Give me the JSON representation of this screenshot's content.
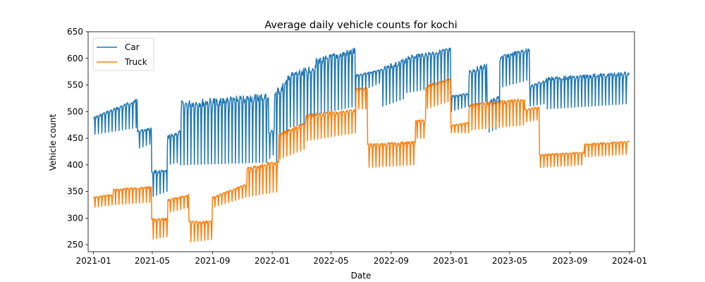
{
  "chart_data": {
    "type": "line",
    "title": "Average daily vehicle counts for kochi",
    "xlabel": "Date",
    "ylabel": "Vehicle count",
    "x_range": [
      "2020-12-21",
      "2024-01-11"
    ],
    "ylim": [
      237,
      650
    ],
    "x_ticks": [
      "2021-01",
      "2021-05",
      "2021-09",
      "2022-01",
      "2022-05",
      "2022-09",
      "2023-01",
      "2023-05",
      "2023-09",
      "2024-01"
    ],
    "y_ticks": [
      250,
      300,
      350,
      400,
      450,
      500,
      550,
      600,
      650
    ],
    "grid": false,
    "legend_position": "top-left",
    "weekly_pattern": "sawtooth weekly cycle; ranges below give the low and high of each segment",
    "series": [
      {
        "name": "Car",
        "color": "#1f77b4",
        "segments": [
          {
            "start": "2021-01-01",
            "end": "2021-03-31",
            "low": [
              457,
              470
            ],
            "high": [
              490,
              525
            ]
          },
          {
            "start": "2021-04-01",
            "end": "2021-04-29",
            "low": [
              430,
              440
            ],
            "high": [
              465,
              470
            ]
          },
          {
            "start": "2021-04-30",
            "end": "2021-05-31",
            "low": [
              340,
              350
            ],
            "high": [
              390,
              390
            ]
          },
          {
            "start": "2021-06-01",
            "end": "2021-06-27",
            "low": [
              400,
              405
            ],
            "high": [
              455,
              465
            ]
          },
          {
            "start": "2021-06-28",
            "end": "2021-12-24",
            "low": [
              400,
              405
            ],
            "high": [
              520,
              535
            ]
          },
          {
            "start": "2021-12-25",
            "end": "2022-01-05",
            "low": [
              410,
              420
            ],
            "high": [
              460,
              470
            ]
          },
          {
            "start": "2022-01-06",
            "end": "2022-01-31",
            "low": [
              400,
              440
            ],
            "high": [
              540,
              560
            ]
          },
          {
            "start": "2022-02-01",
            "end": "2022-03-31",
            "low": [
              470,
              480
            ],
            "high": [
              570,
              590
            ]
          },
          {
            "start": "2022-04-01",
            "end": "2022-06-20",
            "low": [
              495,
              510
            ],
            "high": [
              600,
              620
            ]
          },
          {
            "start": "2022-06-21",
            "end": "2022-08-14",
            "low": [
              535,
              555
            ],
            "high": [
              570,
              580
            ]
          },
          {
            "start": "2022-08-15",
            "end": "2022-09-30",
            "low": [
              510,
              525
            ],
            "high": [
              585,
              600
            ]
          },
          {
            "start": "2022-10-01",
            "end": "2022-12-31",
            "low": [
              535,
              550
            ],
            "high": [
              605,
              620
            ]
          },
          {
            "start": "2023-01-01",
            "end": "2023-02-06",
            "low": [
              500,
              510
            ],
            "high": [
              530,
              535
            ]
          },
          {
            "start": "2023-02-07",
            "end": "2023-03-15",
            "low": [
              500,
              520
            ],
            "high": [
              580,
              590
            ]
          },
          {
            "start": "2023-03-16",
            "end": "2023-04-10",
            "low": [
              460,
              470
            ],
            "high": [
              520,
              530
            ]
          },
          {
            "start": "2023-04-11",
            "end": "2023-06-10",
            "low": [
              545,
              560
            ],
            "high": [
              605,
              620
            ]
          },
          {
            "start": "2023-06-11",
            "end": "2023-07-14",
            "low": [
              510,
              515
            ],
            "high": [
              550,
              560
            ]
          },
          {
            "start": "2023-07-15",
            "end": "2023-12-31",
            "low": [
              505,
              515
            ],
            "high": [
              565,
              575
            ]
          }
        ]
      },
      {
        "name": "Truck",
        "color": "#ff7f0e",
        "segments": [
          {
            "start": "2021-01-01",
            "end": "2021-02-10",
            "low": [
              320,
              325
            ],
            "high": [
              340,
              345
            ]
          },
          {
            "start": "2021-02-11",
            "end": "2021-04-29",
            "low": [
              325,
              330
            ],
            "high": [
              355,
              360
            ]
          },
          {
            "start": "2021-04-30",
            "end": "2021-06-01",
            "low": [
              260,
              265
            ],
            "high": [
              300,
              300
            ]
          },
          {
            "start": "2021-06-02",
            "end": "2021-07-14",
            "low": [
              310,
              320
            ],
            "high": [
              335,
              345
            ]
          },
          {
            "start": "2021-07-15",
            "end": "2021-08-31",
            "low": [
              255,
              260
            ],
            "high": [
              295,
              295
            ]
          },
          {
            "start": "2021-09-01",
            "end": "2021-11-10",
            "low": [
              320,
              340
            ],
            "high": [
              340,
              365
            ]
          },
          {
            "start": "2021-11-11",
            "end": "2022-01-14",
            "low": [
              340,
              350
            ],
            "high": [
              395,
              410
            ]
          },
          {
            "start": "2022-01-15",
            "end": "2022-03-10",
            "low": [
              410,
              430
            ],
            "high": [
              460,
              480
            ]
          },
          {
            "start": "2022-03-11",
            "end": "2022-06-20",
            "low": [
              445,
              460
            ],
            "high": [
              495,
              505
            ]
          },
          {
            "start": "2022-06-21",
            "end": "2022-07-14",
            "low": [
              505,
              505
            ],
            "high": [
              545,
              545
            ]
          },
          {
            "start": "2022-07-15",
            "end": "2022-10-20",
            "low": [
              395,
              400
            ],
            "high": [
              440,
              445
            ]
          },
          {
            "start": "2022-10-21",
            "end": "2022-11-10",
            "low": [
              450,
              450
            ],
            "high": [
              485,
              485
            ]
          },
          {
            "start": "2022-11-11",
            "end": "2022-12-31",
            "low": [
              505,
              520
            ],
            "high": [
              550,
              565
            ]
          },
          {
            "start": "2023-01-01",
            "end": "2023-02-06",
            "low": [
              460,
              460
            ],
            "high": [
              475,
              480
            ]
          },
          {
            "start": "2023-02-07",
            "end": "2023-05-31",
            "low": [
              465,
              475
            ],
            "high": [
              515,
              525
            ]
          },
          {
            "start": "2023-06-01",
            "end": "2023-06-30",
            "low": [
              480,
              485
            ],
            "high": [
              505,
              510
            ]
          },
          {
            "start": "2023-07-01",
            "end": "2023-09-30",
            "low": [
              395,
              400
            ],
            "high": [
              420,
              425
            ]
          },
          {
            "start": "2023-10-01",
            "end": "2023-12-31",
            "low": [
              415,
              420
            ],
            "high": [
              440,
              445
            ]
          }
        ]
      }
    ]
  }
}
